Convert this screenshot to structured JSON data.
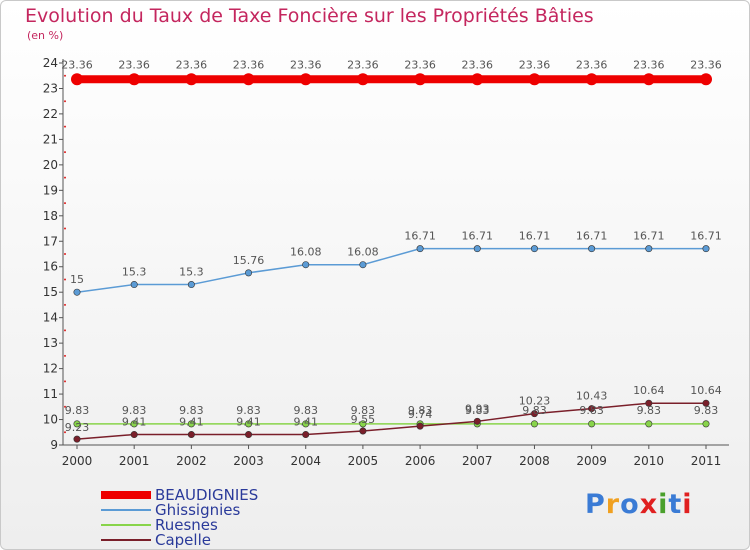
{
  "title": "Evolution du Taux de Taxe Foncière sur les Propriétés Bâties",
  "subtitle": "(en %)",
  "logo": {
    "text": "Proxiti",
    "colors": [
      "#3a7bd5",
      "#f0a020",
      "#3a7bd5",
      "#e02020",
      "#4aa02c",
      "#3a7bd5",
      "#e02020"
    ]
  },
  "chart_data": {
    "type": "line",
    "x": [
      "2000",
      "2001",
      "2002",
      "2003",
      "2004",
      "2005",
      "2006",
      "2007",
      "2008",
      "2009",
      "2010",
      "2011"
    ],
    "ylim": [
      9,
      24
    ],
    "yticks": [
      9,
      10,
      11,
      12,
      13,
      14,
      15,
      16,
      17,
      18,
      19,
      20,
      21,
      22,
      23,
      24
    ],
    "series": [
      {
        "name": "BEAUDIGNIES",
        "color": "#ee0000",
        "values": [
          23.36,
          23.36,
          23.36,
          23.36,
          23.36,
          23.36,
          23.36,
          23.36,
          23.36,
          23.36,
          23.36,
          23.36
        ],
        "labels": [
          "23.36",
          "23.36",
          "23.36",
          "23.36",
          "23.36",
          "23.36",
          "23.36",
          "23.36",
          "23.36",
          "23.36",
          "23.36",
          "23.36"
        ]
      },
      {
        "name": "Ghissignies",
        "color": "#5b9bd5",
        "values": [
          15,
          15.3,
          15.3,
          15.76,
          16.08,
          16.08,
          16.71,
          16.71,
          16.71,
          16.71,
          16.71,
          16.71
        ],
        "labels": [
          "15",
          "15.3",
          "15.3",
          "15.76",
          "16.08",
          "16.08",
          "16.71",
          "16.71",
          "16.71",
          "16.71",
          "16.71",
          "16.71"
        ]
      },
      {
        "name": "Ruesnes",
        "color": "#88d44a",
        "values": [
          9.83,
          9.83,
          9.83,
          9.83,
          9.83,
          9.83,
          9.83,
          9.83,
          9.83,
          9.83,
          9.83,
          9.83
        ],
        "labels": [
          "9.83",
          "9.83",
          "9.83",
          "9.83",
          "9.83",
          "9.83",
          "9.83",
          "9.83",
          "9.83",
          "9.83",
          "9.83",
          "9.83"
        ]
      },
      {
        "name": "Capelle",
        "color": "#7a1f2a",
        "values": [
          9.23,
          9.41,
          9.41,
          9.41,
          9.41,
          9.55,
          9.74,
          9.93,
          10.23,
          10.43,
          10.64,
          10.64
        ],
        "labels": [
          "9.23",
          "9.41",
          "9.41",
          "9.41",
          "9.41",
          "9.55",
          "9.74",
          "9.93",
          "10.23",
          "10.43",
          "10.64",
          "10.64"
        ]
      }
    ],
    "grid": false
  }
}
